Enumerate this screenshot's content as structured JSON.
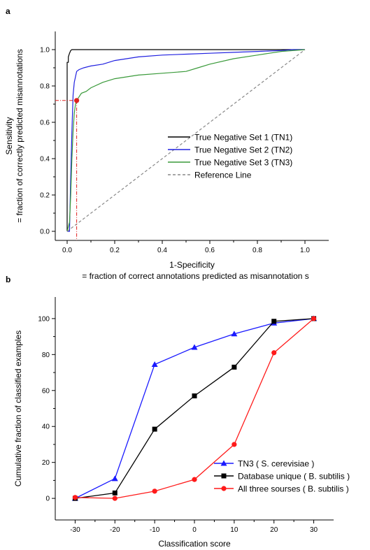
{
  "chart_data": [
    {
      "panel": "a",
      "type": "line",
      "title": "",
      "xlabel": "1-Specificity",
      "xlabel2": "= fraction of correct annotations predicted as misannotation s",
      "ylabel": "Sensitivity",
      "ylabel2": "= fraction of correctly predicted misannotations",
      "xlim": [
        -0.05,
        1.1
      ],
      "ylim": [
        -0.05,
        1.1
      ],
      "xticks": [
        "0.0",
        "0.2",
        "0.4",
        "0.6",
        "0.8",
        "1.0"
      ],
      "yticks": [
        "0.0",
        "0.2",
        "0.4",
        "0.6",
        "0.8",
        "1.0"
      ],
      "grid": false,
      "legend_position": "bottom-right",
      "series": [
        {
          "name": "True Negative Set 1 (TN1)",
          "color": "#000000",
          "dash": "solid",
          "x": [
            0.0,
            0.0,
            0.005,
            0.005,
            0.01,
            0.015,
            0.02,
            0.05,
            1.0
          ],
          "y": [
            0.0,
            0.93,
            0.93,
            0.96,
            0.98,
            0.995,
            1.0,
            1.0,
            1.0
          ]
        },
        {
          "name": "True Negative Set 2 (TN2)",
          "color": "#2020e0",
          "dash": "solid",
          "x": [
            0.0,
            0.01,
            0.015,
            0.02,
            0.025,
            0.03,
            0.035,
            0.04,
            0.05,
            0.07,
            0.1,
            0.15,
            0.2,
            0.25,
            0.3,
            0.4,
            0.5,
            0.6,
            0.7,
            0.8,
            0.9,
            0.95,
            1.0
          ],
          "y": [
            0.0,
            0.0,
            0.3,
            0.55,
            0.75,
            0.82,
            0.85,
            0.88,
            0.89,
            0.9,
            0.91,
            0.92,
            0.94,
            0.95,
            0.96,
            0.97,
            0.975,
            0.98,
            0.985,
            0.99,
            0.995,
            1.0,
            1.0
          ]
        },
        {
          "name": "True Negative Set 3 (TN3)",
          "color": "#3a9a3a",
          "dash": "solid",
          "x": [
            0.0,
            0.01,
            0.015,
            0.02,
            0.025,
            0.03,
            0.035,
            0.04,
            0.05,
            0.06,
            0.08,
            0.1,
            0.15,
            0.2,
            0.3,
            0.4,
            0.5,
            0.55,
            0.6,
            0.7,
            0.8,
            0.9,
            1.0
          ],
          "y": [
            0.0,
            0.05,
            0.2,
            0.4,
            0.55,
            0.65,
            0.7,
            0.72,
            0.74,
            0.76,
            0.77,
            0.79,
            0.82,
            0.84,
            0.86,
            0.87,
            0.88,
            0.9,
            0.92,
            0.95,
            0.97,
            0.99,
            1.0
          ]
        },
        {
          "name": "Reference Line",
          "color": "#888888",
          "dash": "dashed",
          "x": [
            0.0,
            1.0
          ],
          "y": [
            0.0,
            1.0
          ]
        }
      ],
      "annotations": {
        "marker": {
          "x": 0.04,
          "y": 0.72,
          "color": "#e02020"
        },
        "guide_color": "#e02020"
      }
    },
    {
      "panel": "b",
      "type": "line",
      "title": "",
      "xlabel": "Classification  score",
      "ylabel": "Cumulative  fraction  of classified  examples",
      "xlim": [
        -35,
        35
      ],
      "ylim": [
        -12,
        112
      ],
      "xticks": [
        "-30",
        "-20",
        "-10",
        "0",
        "10",
        "20",
        "30"
      ],
      "yticks": [
        "0",
        "20",
        "40",
        "60",
        "80",
        "100"
      ],
      "grid": false,
      "legend_position": "bottom-right",
      "series": [
        {
          "name": "TN3 ( S. cerevisiae  )",
          "color": "#1a1aff",
          "marker": "triangle",
          "x": [
            -30,
            -20,
            -10,
            0,
            10,
            20,
            30
          ],
          "y": [
            0,
            11,
            74.5,
            84,
            91.5,
            97.5,
            100
          ]
        },
        {
          "name": "Database  unique  ( B. subtilis  )",
          "color": "#000000",
          "marker": "square",
          "x": [
            -30,
            -20,
            -10,
            0,
            10,
            20,
            30
          ],
          "y": [
            0,
            3,
            38.5,
            57,
            73,
            98.5,
            100
          ]
        },
        {
          "name": "All three sourses  ( B. subtilis  )",
          "color": "#ff1a1a",
          "marker": "circle",
          "x": [
            -30,
            -20,
            -10,
            0,
            10,
            20,
            30
          ],
          "y": [
            0.5,
            0,
            4,
            10.5,
            30,
            81,
            100
          ]
        }
      ]
    }
  ]
}
